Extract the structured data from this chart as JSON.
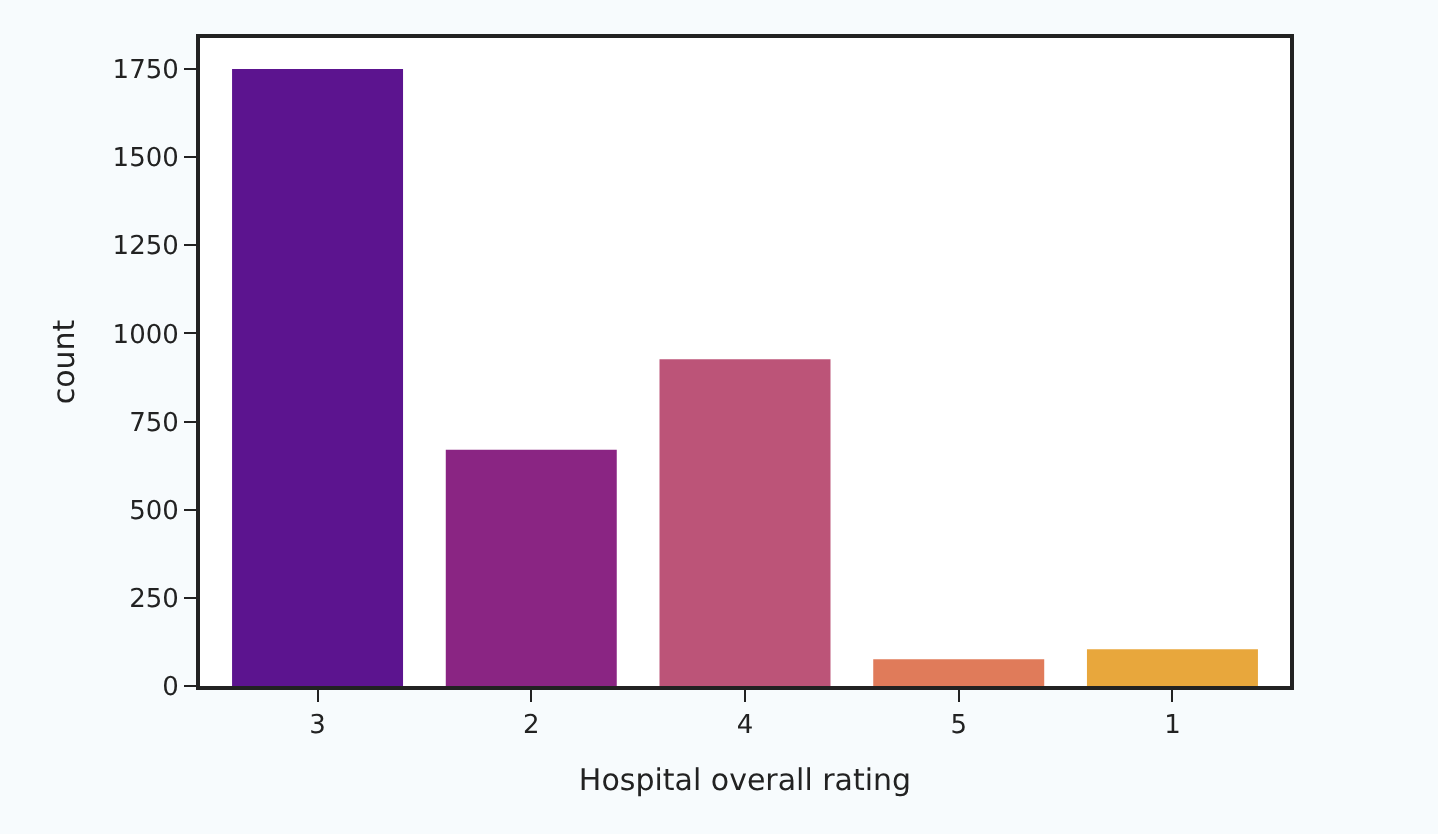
{
  "chart_data": {
    "type": "bar",
    "xlabel": "Hospital overall rating",
    "ylabel": "count",
    "categories": [
      "3",
      "2",
      "4",
      "5",
      "1"
    ],
    "values": [
      1750,
      670,
      927,
      76,
      104
    ],
    "colors": [
      "#5c148f",
      "#8a2583",
      "#bc5478",
      "#e07b5a",
      "#e8a73c"
    ],
    "ylim": [
      0,
      1838
    ],
    "yticks": [
      0,
      250,
      500,
      750,
      1000,
      1250,
      1500,
      1750
    ]
  }
}
